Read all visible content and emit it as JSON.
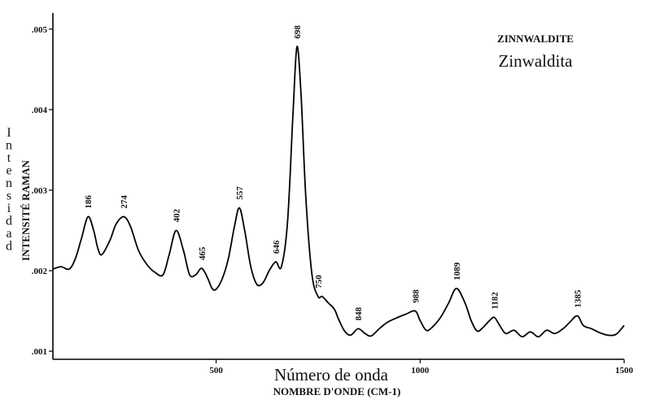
{
  "chart_data": {
    "type": "line",
    "title": "ZINNWALDITE",
    "subtitle": "Zinwaldita",
    "xlabel": "Número de onda",
    "xlabel_secondary": "NOMBRE D'ONDE (CM-1)",
    "ylabel": "INTENSITÉ RAMAN",
    "ylabel_secondary": "Intensidad",
    "xlim": [
      100,
      1500
    ],
    "ylim": [
      0.0009,
      0.0052
    ],
    "x_ticks": [
      {
        "value": 500,
        "label": "500"
      },
      {
        "value": 1000,
        "label": "1000"
      },
      {
        "value": 1500,
        "label": "1500"
      }
    ],
    "y_ticks": [
      {
        "value": 0.001,
        "label": ".001"
      },
      {
        "value": 0.002,
        "label": ".002"
      },
      {
        "value": 0.003,
        "label": ".003"
      },
      {
        "value": 0.004,
        "label": ".004"
      },
      {
        "value": 0.005,
        "label": ".005"
      }
    ],
    "grid": false,
    "legend": "none",
    "series": [
      {
        "x": [
          100,
          120,
          140,
          155,
          170,
          186,
          200,
          210,
          220,
          240,
          255,
          274,
          290,
          310,
          330,
          350,
          370,
          385,
          402,
          420,
          435,
          450,
          465,
          480,
          490,
          500,
          515,
          530,
          545,
          557,
          570,
          585,
          600,
          615,
          630,
          646,
          660,
          675,
          688,
          698,
          708,
          720,
          735,
          750,
          760,
          775,
          790,
          800,
          815,
          830,
          848,
          865,
          880,
          900,
          920,
          945,
          965,
          988,
          1000,
          1015,
          1030,
          1050,
          1070,
          1089,
          1110,
          1125,
          1140,
          1155,
          1170,
          1182,
          1195,
          1210,
          1230,
          1250,
          1270,
          1290,
          1310,
          1330,
          1350,
          1365,
          1385,
          1400,
          1420,
          1440,
          1460,
          1480,
          1500
        ],
        "y": [
          0.00202,
          0.00205,
          0.00202,
          0.00215,
          0.0024,
          0.00267,
          0.0025,
          0.00228,
          0.0022,
          0.00238,
          0.00258,
          0.00267,
          0.00255,
          0.00225,
          0.00208,
          0.00198,
          0.00195,
          0.0022,
          0.0025,
          0.00225,
          0.00195,
          0.00195,
          0.00203,
          0.0019,
          0.00178,
          0.00177,
          0.0019,
          0.00215,
          0.00255,
          0.00278,
          0.0025,
          0.00205,
          0.00183,
          0.00185,
          0.002,
          0.00211,
          0.00205,
          0.0026,
          0.0039,
          0.00478,
          0.0042,
          0.0029,
          0.00195,
          0.00168,
          0.00168,
          0.0016,
          0.00152,
          0.0014,
          0.00125,
          0.0012,
          0.00128,
          0.00122,
          0.00119,
          0.00128,
          0.00136,
          0.00142,
          0.00146,
          0.0015,
          0.00138,
          0.00126,
          0.0013,
          0.00142,
          0.0016,
          0.00178,
          0.0016,
          0.00138,
          0.00125,
          0.0013,
          0.00138,
          0.00142,
          0.00132,
          0.00122,
          0.00126,
          0.00118,
          0.00124,
          0.00118,
          0.00126,
          0.00122,
          0.00128,
          0.00135,
          0.00144,
          0.00132,
          0.00128,
          0.00123,
          0.0012,
          0.00121,
          0.00132
        ]
      }
    ],
    "annotations": [
      {
        "x": 186,
        "y": 0.00267,
        "text": "186"
      },
      {
        "x": 274,
        "y": 0.00267,
        "text": "274"
      },
      {
        "x": 402,
        "y": 0.0025,
        "text": "402"
      },
      {
        "x": 465,
        "y": 0.00203,
        "text": "465"
      },
      {
        "x": 557,
        "y": 0.00278,
        "text": "557"
      },
      {
        "x": 646,
        "y": 0.00211,
        "text": "646"
      },
      {
        "x": 698,
        "y": 0.00478,
        "text": "698"
      },
      {
        "x": 750,
        "y": 0.00168,
        "text": "750"
      },
      {
        "x": 848,
        "y": 0.00128,
        "text": "848"
      },
      {
        "x": 988,
        "y": 0.0015,
        "text": "988"
      },
      {
        "x": 1089,
        "y": 0.00178,
        "text": "1089"
      },
      {
        "x": 1182,
        "y": 0.00142,
        "text": "1182"
      },
      {
        "x": 1385,
        "y": 0.00144,
        "text": "1385"
      }
    ],
    "line_color": "#000000"
  }
}
